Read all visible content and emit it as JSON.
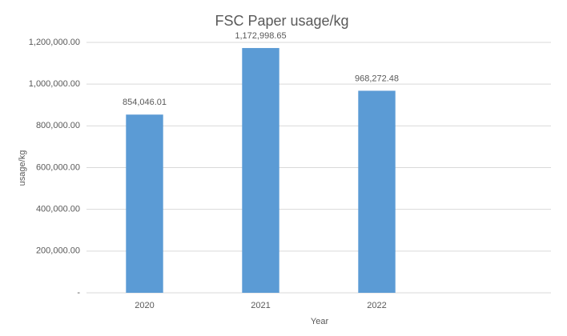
{
  "chart_data": {
    "type": "bar",
    "title": "FSC Paper usage/kg",
    "x_label": "Year",
    "y_label": "usage/kg",
    "categories": [
      "2020",
      "2021",
      "2022",
      null
    ],
    "values": [
      854046.01,
      1172998.65,
      968272.48,
      null
    ],
    "value_labels": [
      "854,046.01",
      "1,172,998.65",
      "968,272.48",
      null
    ],
    "color": "#5b9bd5",
    "ylim": [
      0,
      1200000
    ],
    "yticks": [
      {
        "value": 0,
        "label": "-"
      },
      {
        "value": 200000,
        "label": "200,000.00"
      },
      {
        "value": 400000,
        "label": "400,000.00"
      },
      {
        "value": 600000,
        "label": "600,000.00"
      },
      {
        "value": 800000,
        "label": "800,000.00"
      },
      {
        "value": 1000000,
        "label": "1,000,000.00"
      },
      {
        "value": 1200000,
        "label": "1,200,000.00"
      }
    ],
    "grid": true
  }
}
